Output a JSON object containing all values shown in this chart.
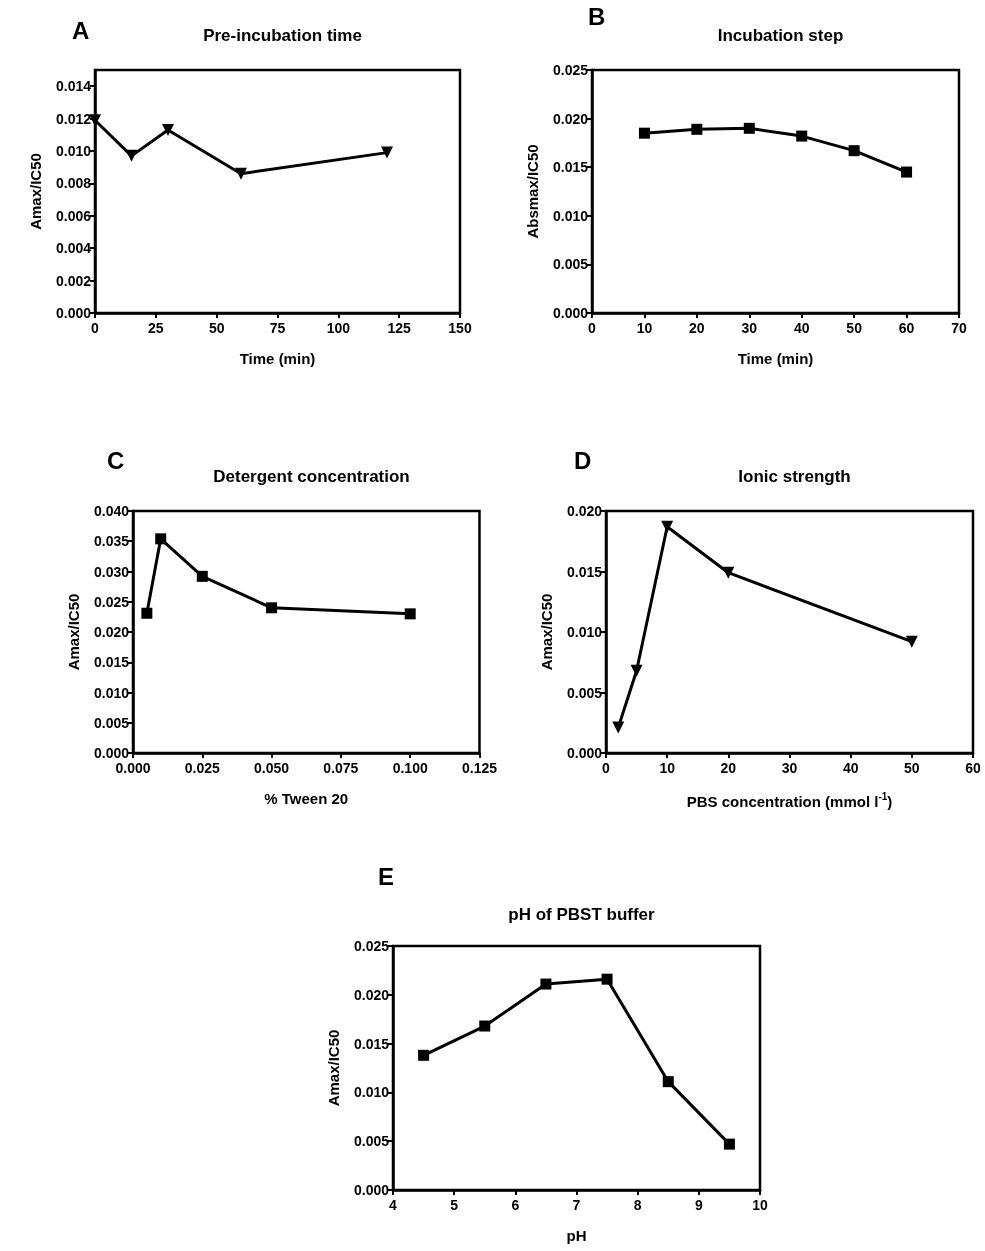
{
  "chart_data": [
    {
      "type": "line",
      "title": "Pre-incubation time",
      "annotations": [
        "A"
      ],
      "xlabel": "Time (min)",
      "ylabel": "Amax/IC50",
      "marker": "triangle",
      "line_style": "solid",
      "grid": false,
      "x": [
        0,
        15,
        30,
        60,
        120
      ],
      "series": [
        {
          "color": "#000000",
          "values": [
            0.0119,
            0.0097,
            0.0113,
            0.0086,
            0.0099
          ]
        }
      ],
      "xlim": [
        0,
        150
      ],
      "xticks": [
        0,
        25,
        50,
        75,
        100,
        125,
        150
      ],
      "ylim": [
        0,
        0.015
      ],
      "yticks": [
        {
          "value": 0,
          "label": "0.000"
        },
        {
          "value": 0.002,
          "label": "0.002"
        },
        {
          "value": 0.004,
          "label": "0.004"
        },
        {
          "value": 0.006,
          "label": "0.006"
        },
        {
          "value": 0.008,
          "label": "0.008"
        },
        {
          "value": 0.01,
          "label": "0.010"
        },
        {
          "value": 0.012,
          "label": "0.012"
        },
        {
          "value": 0.014,
          "label": "0.014"
        }
      ]
    },
    {
      "type": "line",
      "title": "Incubation step",
      "annotations": [
        "B"
      ],
      "xlabel": "Time (min)",
      "ylabel": "Absmax/IC50",
      "marker": "square",
      "line_style": "solid",
      "grid": false,
      "x": [
        10,
        20,
        30,
        40,
        50,
        60
      ],
      "series": [
        {
          "color": "#000000",
          "values": [
            0.0185,
            0.0189,
            0.019,
            0.0182,
            0.0167,
            0.0145
          ]
        }
      ],
      "xlim": [
        0,
        70
      ],
      "xticks": [
        0,
        10,
        20,
        30,
        40,
        50,
        60,
        70
      ],
      "ylim": [
        0,
        0.025
      ],
      "yticks": [
        {
          "value": 0,
          "label": "0.000"
        },
        {
          "value": 0.005,
          "label": "0.005"
        },
        {
          "value": 0.01,
          "label": "0.010"
        },
        {
          "value": 0.015,
          "label": "0.015"
        },
        {
          "value": 0.02,
          "label": "0.020"
        },
        {
          "value": 0.025,
          "label": "0.025"
        }
      ]
    },
    {
      "type": "line",
      "title": "Detergent concentration",
      "annotations": [
        "C"
      ],
      "xlabel": "% Tween 20",
      "ylabel": "Amax/IC50",
      "marker": "square",
      "line_style": "solid",
      "grid": false,
      "x": [
        0.005,
        0.01,
        0.025,
        0.05,
        0.1
      ],
      "series": [
        {
          "color": "#000000",
          "values": [
            0.0231,
            0.0354,
            0.0292,
            0.024,
            0.023
          ]
        }
      ],
      "xlim": [
        0,
        0.125
      ],
      "xticks": [
        {
          "value": 0,
          "label": "0.000"
        },
        {
          "value": 0.025,
          "label": "0.025"
        },
        {
          "value": 0.05,
          "label": "0.050"
        },
        {
          "value": 0.075,
          "label": "0.075"
        },
        {
          "value": 0.1,
          "label": "0.100"
        },
        {
          "value": 0.125,
          "label": "0.125"
        }
      ],
      "ylim": [
        0,
        0.04
      ],
      "yticks": [
        {
          "value": 0,
          "label": "0.000"
        },
        {
          "value": 0.005,
          "label": "0.005"
        },
        {
          "value": 0.01,
          "label": "0.010"
        },
        {
          "value": 0.015,
          "label": "0.015"
        },
        {
          "value": 0.02,
          "label": "0.020"
        },
        {
          "value": 0.025,
          "label": "0.025"
        },
        {
          "value": 0.03,
          "label": "0.030"
        },
        {
          "value": 0.035,
          "label": "0.035"
        },
        {
          "value": 0.04,
          "label": "0.040"
        }
      ]
    },
    {
      "type": "line",
      "title": "Ionic strength",
      "annotations": [
        "D"
      ],
      "xlabel": "PBS concentration (mmol l$^{-1}$)",
      "ylabel": "Amax/IC50",
      "marker": "triangle",
      "line_style": "solid",
      "grid": false,
      "x": [
        2,
        5,
        10,
        20,
        50
      ],
      "series": [
        {
          "color": "#000000",
          "values": [
            0.0021,
            0.0068,
            0.0187,
            0.0149,
            0.0092
          ]
        }
      ],
      "xlim": [
        0,
        60
      ],
      "xticks": [
        0,
        10,
        20,
        30,
        40,
        50,
        60
      ],
      "ylim": [
        0,
        0.02
      ],
      "yticks": [
        {
          "value": 0,
          "label": "0.000"
        },
        {
          "value": 0.005,
          "label": "0.005"
        },
        {
          "value": 0.01,
          "label": "0.010"
        },
        {
          "value": 0.015,
          "label": "0.015"
        },
        {
          "value": 0.02,
          "label": "0.020"
        }
      ]
    },
    {
      "type": "line",
      "title": "pH of PBST buffer",
      "annotations": [
        "E"
      ],
      "xlabel": "pH",
      "ylabel": "Amax/IC50",
      "marker": "square",
      "line_style": "solid",
      "grid": false,
      "x": [
        4.5,
        5.5,
        6.5,
        7.5,
        8.5,
        9.5
      ],
      "series": [
        {
          "color": "#000000",
          "values": [
            0.0138,
            0.0168,
            0.0211,
            0.0216,
            0.0111,
            0.0047
          ]
        }
      ],
      "xlim": [
        4,
        10
      ],
      "xticks": [
        4,
        5,
        6,
        7,
        8,
        9,
        10
      ],
      "ylim": [
        0,
        0.025
      ],
      "yticks": [
        {
          "value": 0,
          "label": "0.000"
        },
        {
          "value": 0.005,
          "label": "0.005"
        },
        {
          "value": 0.01,
          "label": "0.010"
        },
        {
          "value": 0.015,
          "label": "0.015"
        },
        {
          "value": 0.02,
          "label": "0.020"
        },
        {
          "value": 0.025,
          "label": "0.025"
        }
      ]
    }
  ]
}
